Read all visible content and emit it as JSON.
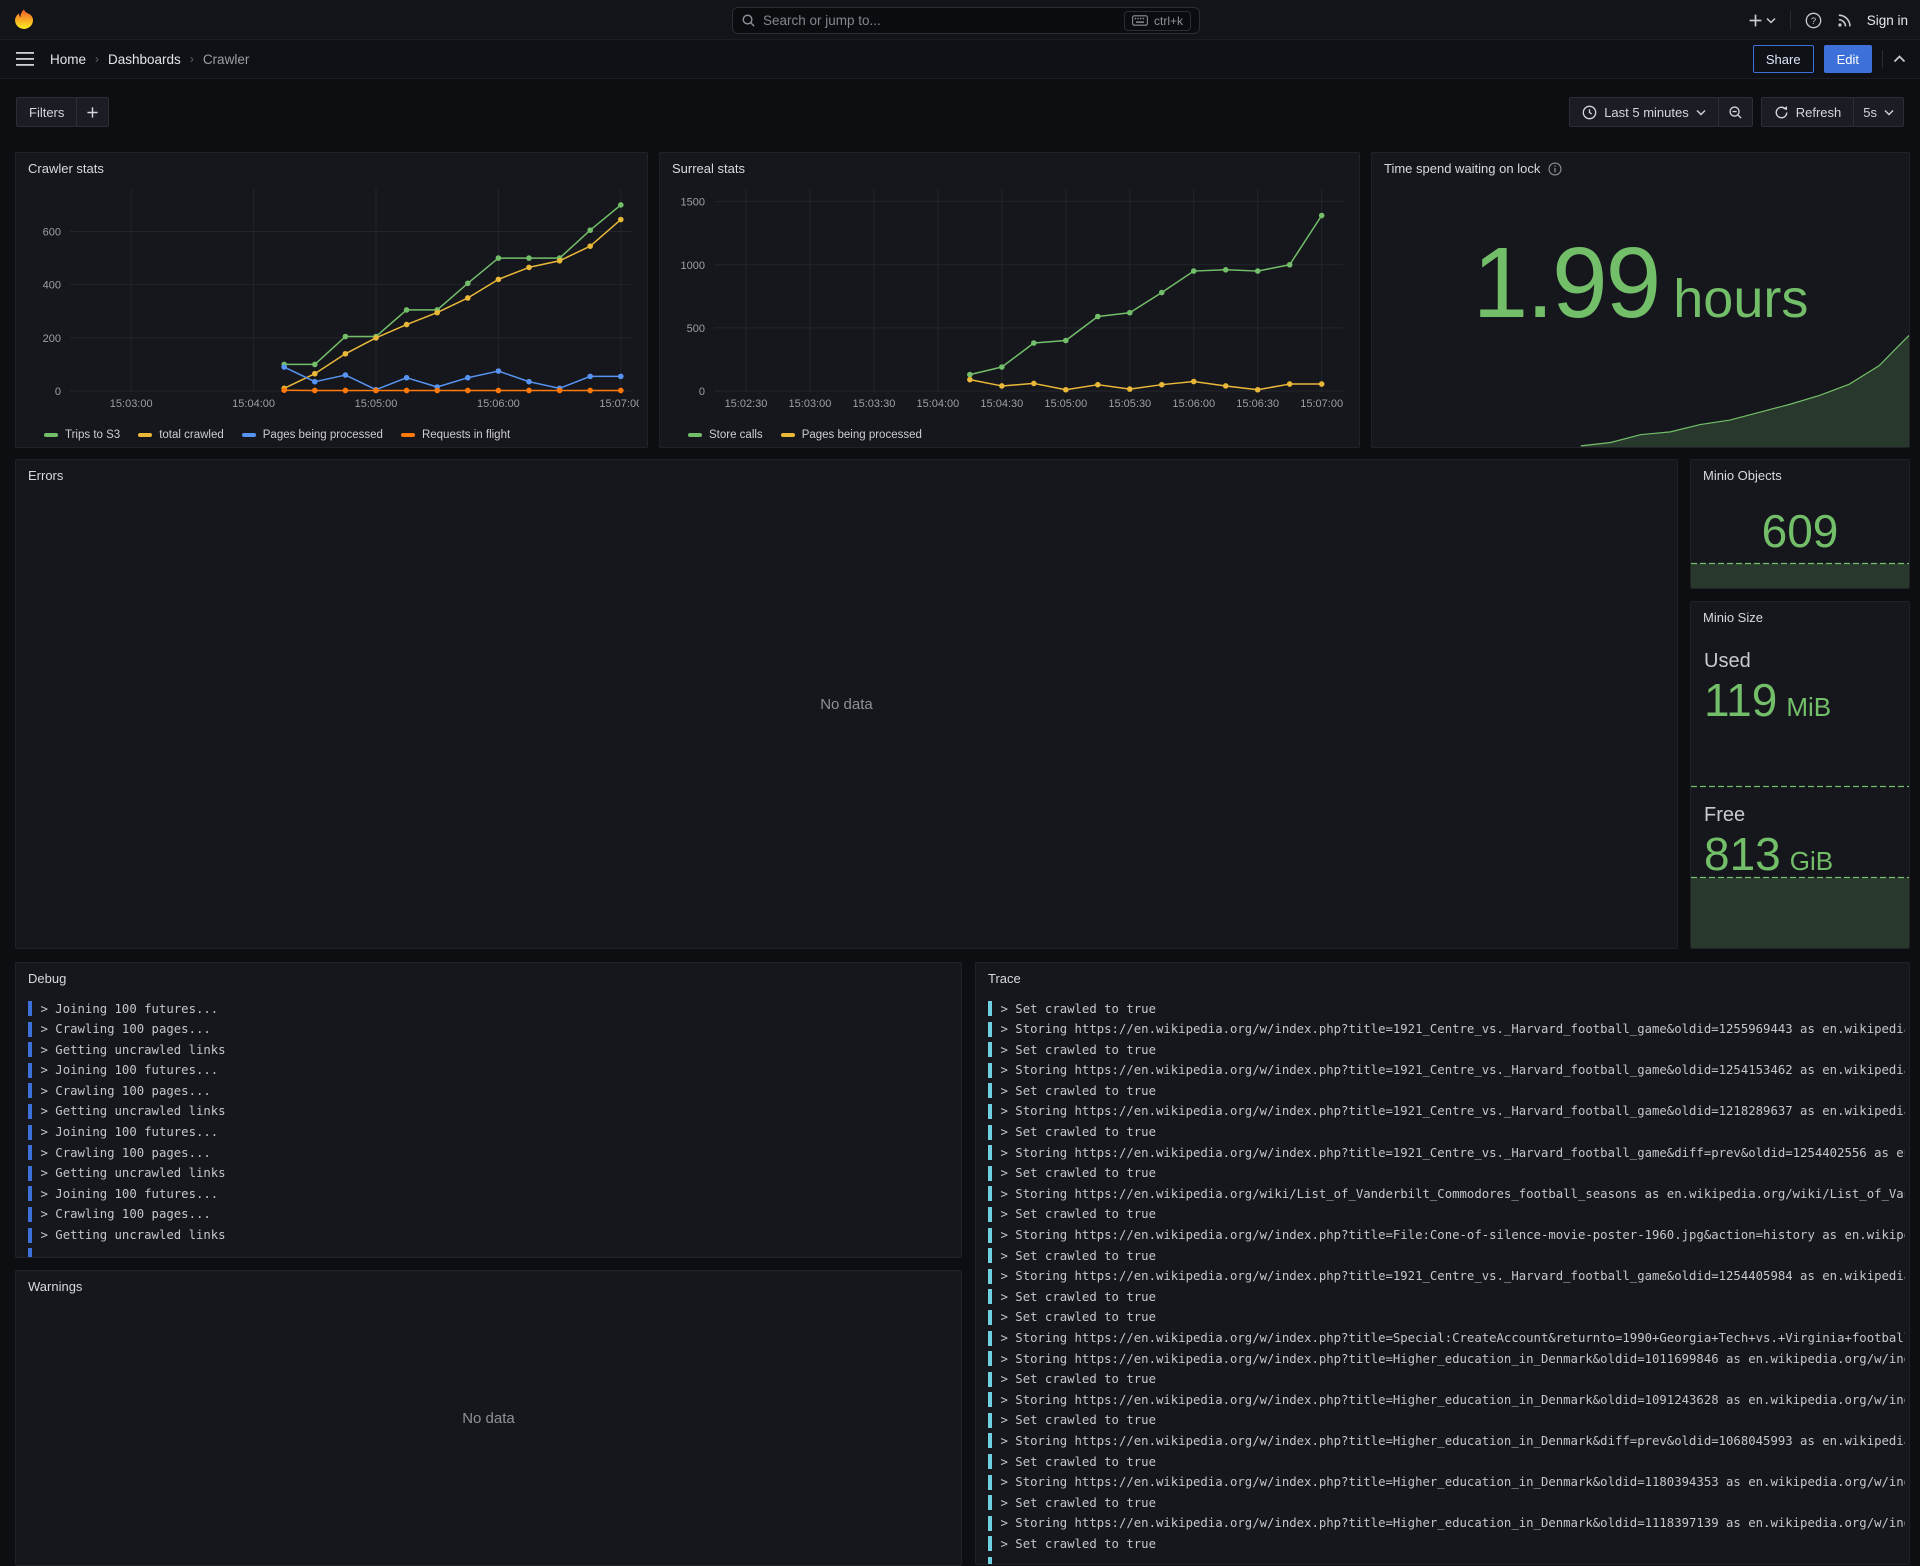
{
  "nav": {
    "search_placeholder": "Search or jump to...",
    "shortcut": "ctrl+k",
    "sign_in": "Sign in"
  },
  "breadcrumb": {
    "items": [
      "Home",
      "Dashboards",
      "Crawler"
    ]
  },
  "actions": {
    "share": "Share",
    "edit": "Edit"
  },
  "toolbar": {
    "filters": "Filters",
    "time_range": "Last 5 minutes",
    "refresh": "Refresh",
    "interval": "5s"
  },
  "colors": {
    "green": "#73bf69",
    "yellow": "#eab839",
    "blue": "#5794f2",
    "orange": "#ff780a",
    "trace_bar": "#6ed0e0",
    "debug_bar": "#3d71d9",
    "accent": "#3d71d9"
  },
  "panels": {
    "crawler": {
      "title": "Crawler stats"
    },
    "surreal": {
      "title": "Surreal stats"
    },
    "lock": {
      "title": "Time spend waiting on lock",
      "value": "1.99",
      "unit": "hours"
    },
    "errors": {
      "title": "Errors",
      "no_data": "No data"
    },
    "minio_objects": {
      "title": "Minio Objects",
      "value": "609"
    },
    "minio_size": {
      "title": "Minio Size",
      "used_label": "Used",
      "used_value": "119",
      "used_unit": "MiB",
      "free_label": "Free",
      "free_value": "813",
      "free_unit": "GiB"
    },
    "debug": {
      "title": "Debug",
      "lines": [
        "Joining 100 futures...",
        "Crawling 100 pages...",
        "Getting uncrawled links",
        "Joining 100 futures...",
        "Crawling 100 pages...",
        "Getting uncrawled links",
        "Joining 100 futures...",
        "Crawling 100 pages...",
        "Getting uncrawled links",
        "Joining 100 futures...",
        "Crawling 100 pages...",
        "Getting uncrawled links",
        ""
      ]
    },
    "warnings": {
      "title": "Warnings",
      "no_data": "No data"
    },
    "trace": {
      "title": "Trace",
      "lines": [
        "Set crawled to true",
        "Storing https://en.wikipedia.org/w/index.php?title=1921_Centre_vs._Harvard_football_game&oldid=1255969443 as en.wikipedia.o",
        "Set crawled to true",
        "Storing https://en.wikipedia.org/w/index.php?title=1921_Centre_vs._Harvard_football_game&oldid=1254153462 as en.wikipedia.o",
        "Set crawled to true",
        "Storing https://en.wikipedia.org/w/index.php?title=1921_Centre_vs._Harvard_football_game&oldid=1218289637 as en.wikipedia.o",
        "Set crawled to true",
        "Storing https://en.wikipedia.org/w/index.php?title=1921_Centre_vs._Harvard_football_game&diff=prev&oldid=1254402556 as en.wi",
        "Set crawled to true",
        "Storing https://en.wikipedia.org/wiki/List_of_Vanderbilt_Commodores_football_seasons as en.wikipedia.org/wiki/List_of_Vande",
        "Set crawled to true",
        "Storing https://en.wikipedia.org/w/index.php?title=File:Cone-of-silence-movie-poster-1960.jpg&action=history as en.wikipedi",
        "Set crawled to true",
        "Storing https://en.wikipedia.org/w/index.php?title=1921_Centre_vs._Harvard_football_game&oldid=1254405984 as en.wikipedia.o",
        "Set crawled to true",
        "Set crawled to true",
        "Storing https://en.wikipedia.org/w/index.php?title=Special:CreateAccount&returnto=1990+Georgia+Tech+vs.+Virginia+football+g",
        "Storing https://en.wikipedia.org/w/index.php?title=Higher_education_in_Denmark&oldid=1011699846 as en.wikipedia.org/w/index",
        "Set crawled to true",
        "Storing https://en.wikipedia.org/w/index.php?title=Higher_education_in_Denmark&oldid=1091243628 as en.wikipedia.org/w/index",
        "Set crawled to true",
        "Storing https://en.wikipedia.org/w/index.php?title=Higher_education_in_Denmark&diff=prev&oldid=1068045993 as en.wikipedia.o",
        "Set crawled to true",
        "Storing https://en.wikipedia.org/w/index.php?title=Higher_education_in_Denmark&oldid=1180394353 as en.wikipedia.org/w/index",
        "Set crawled to true",
        "Storing https://en.wikipedia.org/w/index.php?title=Higher_education_in_Denmark&oldid=1118397139 as en.wikipedia.org/w/index",
        "Set crawled to true",
        ""
      ]
    }
  },
  "chart_data": [
    {
      "id": "crawler_stats",
      "type": "line",
      "title": "Crawler stats",
      "x_range": [
        "15:02:30",
        "15:07:05"
      ],
      "x_ticks": [
        "15:03:00",
        "15:04:00",
        "15:05:00",
        "15:06:00",
        "15:07:00"
      ],
      "ylim": [
        0,
        760
      ],
      "y_ticks": [
        0,
        200,
        400,
        600
      ],
      "grid": true,
      "legend_position": "bottom",
      "times": [
        "15:04:15",
        "15:04:30",
        "15:04:45",
        "15:05:00",
        "15:05:15",
        "15:05:30",
        "15:05:45",
        "15:06:00",
        "15:06:15",
        "15:06:30",
        "15:06:45",
        "15:07:00"
      ],
      "series": [
        {
          "name": "Trips to S3",
          "color": "#73bf69",
          "values": [
            100,
            100,
            205,
            205,
            305,
            305,
            405,
            500,
            500,
            500,
            605,
            700
          ]
        },
        {
          "name": "total crawled",
          "color": "#eab839",
          "values": [
            10,
            65,
            140,
            200,
            250,
            295,
            350,
            420,
            465,
            490,
            545,
            645
          ]
        },
        {
          "name": "Pages being processed",
          "color": "#5794f2",
          "values": [
            90,
            35,
            60,
            5,
            50,
            15,
            50,
            75,
            35,
            10,
            55,
            55
          ]
        },
        {
          "name": "Requests in flight",
          "color": "#ff780a",
          "values": [
            3,
            2,
            2,
            2,
            2,
            2,
            2,
            2,
            2,
            2,
            2,
            2
          ]
        }
      ]
    },
    {
      "id": "surreal_stats",
      "type": "line",
      "title": "Surreal stats",
      "x_range": [
        "15:02:15",
        "15:07:10"
      ],
      "x_ticks": [
        "15:02:30",
        "15:03:00",
        "15:03:30",
        "15:04:00",
        "15:04:30",
        "15:05:00",
        "15:05:30",
        "15:06:00",
        "15:06:30",
        "15:07:00"
      ],
      "ylim": [
        0,
        1600
      ],
      "y_ticks": [
        0,
        500,
        1000,
        1500
      ],
      "grid": true,
      "legend_position": "bottom",
      "times": [
        "15:04:15",
        "15:04:30",
        "15:04:45",
        "15:05:00",
        "15:05:15",
        "15:05:30",
        "15:05:45",
        "15:06:00",
        "15:06:15",
        "15:06:30",
        "15:06:45",
        "15:07:00"
      ],
      "series": [
        {
          "name": "Store calls",
          "color": "#73bf69",
          "values": [
            130,
            190,
            380,
            400,
            590,
            620,
            780,
            950,
            960,
            950,
            1000,
            1390
          ]
        },
        {
          "name": "Pages being processed",
          "color": "#eab839",
          "values": [
            90,
            40,
            60,
            10,
            50,
            15,
            50,
            75,
            40,
            10,
            55,
            55
          ]
        }
      ]
    },
    {
      "id": "lock_spark",
      "type": "area",
      "title": "Time spend waiting on lock",
      "x_range": [
        "15:02:30",
        "15:07:00"
      ],
      "ylim": [
        0,
        2.05
      ],
      "unit": "hours",
      "current": 1.99,
      "times": [
        "15:04:15",
        "15:04:30",
        "15:04:45",
        "15:05:00",
        "15:05:15",
        "15:05:30",
        "15:05:45",
        "15:06:00",
        "15:06:15",
        "15:06:30",
        "15:06:45",
        "15:07:00"
      ],
      "values": [
        0.02,
        0.08,
        0.22,
        0.27,
        0.4,
        0.48,
        0.62,
        0.76,
        0.92,
        1.12,
        1.45,
        1.99
      ]
    },
    {
      "id": "minio_objects_spark",
      "type": "area",
      "title": "Minio Objects",
      "values": [
        609,
        609
      ],
      "dashed": true
    },
    {
      "id": "minio_used_spark",
      "type": "line",
      "title": "Minio Size — Used (MiB)",
      "values": [
        119,
        119
      ],
      "dashed": true
    },
    {
      "id": "minio_free_spark",
      "type": "area",
      "title": "Minio Size — Free (GiB)",
      "values": [
        813,
        813
      ],
      "dashed": true
    }
  ]
}
